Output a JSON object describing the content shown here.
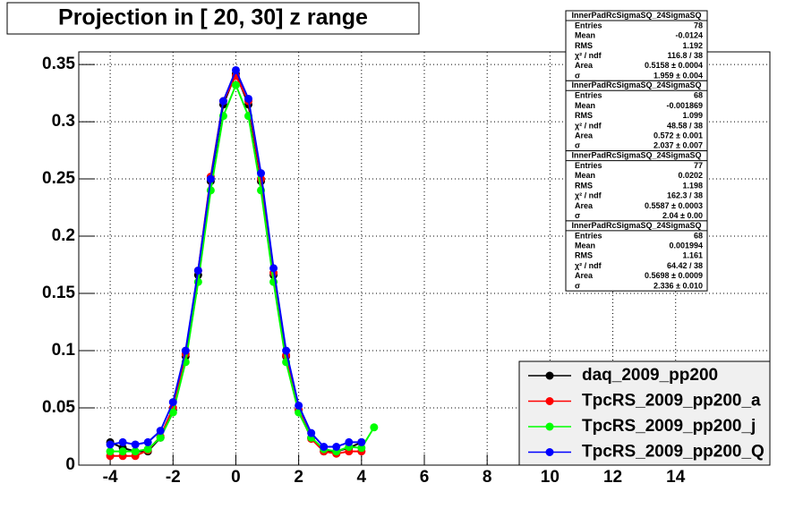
{
  "chart_data": {
    "type": "scatter",
    "title": "Projection in [  20,  30] z range",
    "xlim": [
      -5,
      17
    ],
    "ylim": [
      0,
      0.361
    ],
    "xticks": [
      -4,
      -2,
      0,
      2,
      4,
      6,
      8,
      10,
      12,
      14
    ],
    "yticks": [
      0,
      0.05,
      0.1,
      0.15,
      0.2,
      0.25,
      0.3,
      0.35
    ],
    "grid": true,
    "legend_position": "lower-right",
    "series": [
      {
        "name": "daq_2009_pp200",
        "color": "#000000",
        "x": [
          -4,
          -3.6,
          -3.2,
          -2.8,
          -2.4,
          -2,
          -1.6,
          -1.2,
          -0.8,
          -0.4,
          0,
          0.4,
          0.8,
          1.2,
          1.6,
          2,
          2.4,
          2.8,
          3.2,
          3.6,
          4
        ],
        "values": [
          0.02,
          0.015,
          0.012,
          0.012,
          0.024,
          0.048,
          0.095,
          0.166,
          0.248,
          0.315,
          0.342,
          0.315,
          0.248,
          0.166,
          0.095,
          0.048,
          0.024,
          0.012,
          0.012,
          0.015,
          0.02
        ]
      },
      {
        "name": "TpcRS_2009_pp200_a",
        "color": "#ff0000",
        "x": [
          -4,
          -3.6,
          -3.2,
          -2.8,
          -2.4,
          -2,
          -1.6,
          -1.2,
          -0.8,
          -0.4,
          0,
          0.4,
          0.8,
          1.2,
          1.6,
          2,
          2.4,
          2.8,
          3.2,
          3.6,
          4
        ],
        "values": [
          0.008,
          0.008,
          0.008,
          0.013,
          0.025,
          0.05,
          0.097,
          0.17,
          0.252,
          0.318,
          0.34,
          0.318,
          0.25,
          0.168,
          0.096,
          0.048,
          0.023,
          0.012,
          0.01,
          0.012,
          0.012
        ]
      },
      {
        "name": "TpcRS_2009_pp200_j",
        "color": "#00ff00",
        "x": [
          -4,
          -3.6,
          -3.2,
          -2.8,
          -2.4,
          -2,
          -1.6,
          -1.2,
          -0.8,
          -0.4,
          0,
          0.4,
          0.8,
          1.2,
          1.6,
          2,
          2.4,
          2.8,
          3.2,
          3.6,
          4,
          4.4
        ],
        "values": [
          0.012,
          0.012,
          0.012,
          0.014,
          0.024,
          0.046,
          0.09,
          0.16,
          0.24,
          0.305,
          0.332,
          0.305,
          0.24,
          0.16,
          0.09,
          0.046,
          0.024,
          0.014,
          0.012,
          0.016,
          0.015,
          0.033
        ]
      },
      {
        "name": "TpcRS_2009_pp200_Q",
        "color": "#0000ff",
        "x": [
          -4,
          -3.6,
          -3.2,
          -2.8,
          -2.4,
          -2,
          -1.6,
          -1.2,
          -0.8,
          -0.4,
          0,
          0.4,
          0.8,
          1.2,
          1.6,
          2,
          2.4,
          2.8,
          3.2,
          3.6,
          4
        ],
        "values": [
          0.018,
          0.02,
          0.018,
          0.02,
          0.03,
          0.055,
          0.1,
          0.17,
          0.25,
          0.318,
          0.345,
          0.32,
          0.255,
          0.172,
          0.1,
          0.052,
          0.028,
          0.016,
          0.016,
          0.02,
          0.02
        ]
      }
    ],
    "stats_boxes": [
      {
        "title": "InnerPadRcSigmaSQ_24SigmaSQ",
        "rows": [
          [
            "Entries",
            "78"
          ],
          [
            "Mean",
            "-0.0124"
          ],
          [
            "RMS",
            "1.192"
          ],
          [
            "χ² / ndf",
            "116.8 / 38"
          ],
          [
            "Area",
            "0.5158 ± 0.0004"
          ],
          [
            "σ",
            "1.959 ± 0.004"
          ]
        ]
      },
      {
        "title": "InnerPadRcSigmaSQ_24SigmaSQ",
        "rows": [
          [
            "Entries",
            "68"
          ],
          [
            "Mean",
            "-0.001869"
          ],
          [
            "RMS",
            "1.099"
          ],
          [
            "χ² / ndf",
            "48.58 / 38"
          ],
          [
            "Area",
            "0.572 ± 0.001"
          ],
          [
            "σ",
            "2.037 ± 0.007"
          ]
        ]
      },
      {
        "title": "InnerPadRcSigmaSQ_24SigmaSQ",
        "rows": [
          [
            "Entries",
            "77"
          ],
          [
            "Mean",
            "0.0202"
          ],
          [
            "RMS",
            "1.198"
          ],
          [
            "χ² / ndf",
            "162.3 / 38"
          ],
          [
            "Area",
            "0.5587 ± 0.0003"
          ],
          [
            "σ",
            "2.04 ± 0.00"
          ]
        ]
      },
      {
        "title": "InnerPadRcSigmaSQ_24SigmaSQ",
        "rows": [
          [
            "Entries",
            "68"
          ],
          [
            "Mean",
            "0.001994"
          ],
          [
            "RMS",
            "1.161"
          ],
          [
            "χ² / ndf",
            "64.42 / 38"
          ],
          [
            "Area",
            "0.5698 ± 0.0009"
          ],
          [
            "σ",
            "2.336 ± 0.010"
          ]
        ]
      }
    ]
  }
}
